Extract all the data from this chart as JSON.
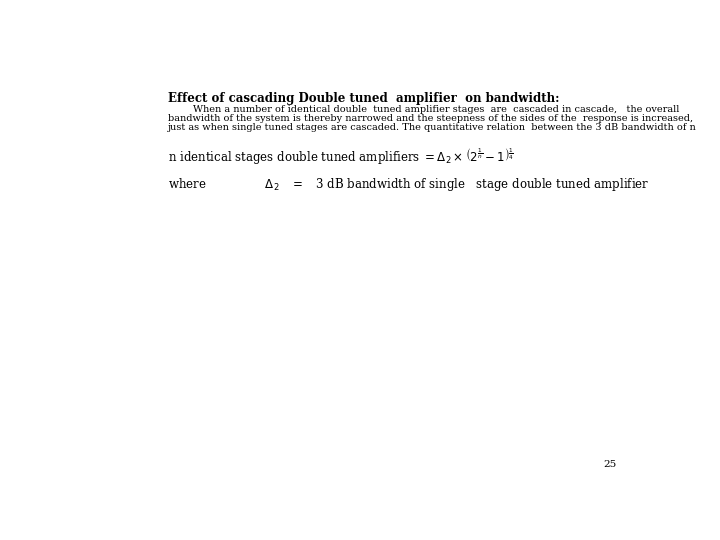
{
  "title": "Effect of cascading Double tuned  amplifier  on bandwidth:",
  "body_line1": "        When a number of identical double  tuned amplifier stages  are  cascaded in cascade,   the overall",
  "body_line2": "bandwidth of the system is thereby narrowed and the steepness of the sides of the  response is increased,",
  "body_line3": "just as when single tuned stages are cascaded. The quantitative relation  between the 3 dB bandwidth of n",
  "page_number": "25",
  "bg_color": "#ffffff",
  "text_color": "#000000",
  "title_fontsize": 8.5,
  "body_fontsize": 7.0,
  "formula_fontsize": 8.5,
  "where_fontsize": 8.5
}
